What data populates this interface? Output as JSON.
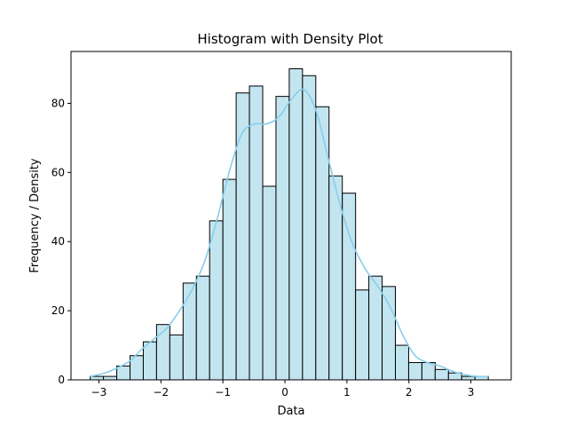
{
  "chart_data": {
    "type": "bar",
    "title": "Histogram with Density Plot",
    "xlabel": "Data",
    "ylabel": "Frequency / Density",
    "xlim": [
      -3.45,
      3.65
    ],
    "ylim": [
      0,
      95
    ],
    "x_ticks": [
      -3,
      -2,
      -1,
      0,
      1,
      2,
      3
    ],
    "x_tick_labels": [
      "−3",
      "−2",
      "−1",
      "0",
      "1",
      "2",
      "3"
    ],
    "y_ticks": [
      0,
      20,
      40,
      60,
      80
    ],
    "y_tick_labels": [
      "0",
      "20",
      "40",
      "60",
      "80"
    ],
    "grid": false,
    "bin_edges": [
      -3.14,
      -2.926,
      -2.712,
      -2.498,
      -2.284,
      -2.07,
      -1.856,
      -1.642,
      -1.428,
      -1.214,
      -1.0,
      -0.786,
      -0.572,
      -0.358,
      -0.144,
      0.07,
      0.284,
      0.498,
      0.712,
      0.926,
      1.14,
      1.354,
      1.568,
      1.782,
      1.996,
      2.21,
      2.424,
      2.638,
      2.852,
      3.066,
      3.28
    ],
    "counts": [
      1,
      1,
      4,
      7,
      11,
      16,
      13,
      28,
      30,
      46,
      58,
      83,
      85,
      56,
      82,
      90,
      88,
      79,
      59,
      54,
      26,
      30,
      27,
      10,
      5,
      5,
      3,
      2,
      1,
      1
    ],
    "density_curve": {
      "x": [
        -3.14,
        -2.9,
        -2.7,
        -2.5,
        -2.3,
        -2.1,
        -1.9,
        -1.7,
        -1.5,
        -1.3,
        -1.1,
        -0.9,
        -0.7,
        -0.5,
        -0.3,
        -0.1,
        0.1,
        0.3,
        0.5,
        0.7,
        0.9,
        1.1,
        1.3,
        1.5,
        1.7,
        1.9,
        2.1,
        2.3,
        2.5,
        2.7,
        2.9,
        3.1,
        3.28
      ],
      "y": [
        1,
        2,
        3.5,
        5.5,
        9,
        12,
        15,
        20,
        26,
        34,
        46,
        60,
        71,
        74,
        74,
        76,
        81,
        84,
        78,
        64,
        50,
        39,
        32,
        27,
        21,
        13,
        7,
        5,
        4,
        2.5,
        1.5,
        1,
        1
      ]
    },
    "colors": {
      "bar_fill": "#c3e5f0",
      "bar_edge": "#000000",
      "density_line": "#87ceeb"
    }
  }
}
